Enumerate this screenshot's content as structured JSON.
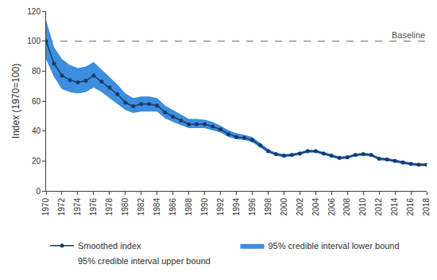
{
  "chart_data": {
    "type": "line",
    "y_label": "Index (1970=100)",
    "x": [
      1970,
      1971,
      1972,
      1973,
      1974,
      1975,
      1976,
      1977,
      1978,
      1979,
      1980,
      1981,
      1982,
      1983,
      1984,
      1985,
      1986,
      1987,
      1988,
      1989,
      1990,
      1991,
      1992,
      1993,
      1994,
      1995,
      1996,
      1997,
      1998,
      1999,
      2000,
      2001,
      2002,
      2003,
      2004,
      2005,
      2006,
      2007,
      2008,
      2009,
      2010,
      2011,
      2012,
      2013,
      2014,
      2015,
      2016,
      2017,
      2018
    ],
    "series": [
      {
        "name": "Smoothed index",
        "type": "line",
        "color": "#1b3a6b",
        "marker": "circle",
        "line_style": "solid",
        "values": [
          100,
          85,
          77,
          74,
          72.5,
          73.5,
          77,
          73,
          69,
          64.5,
          59,
          56.5,
          58,
          58,
          57,
          52.5,
          49.5,
          47,
          44.5,
          44.5,
          44.5,
          43,
          41,
          38,
          36,
          35.5,
          34,
          30.5,
          26.5,
          24.5,
          23.5,
          24,
          25,
          26.5,
          26.5,
          25,
          23.5,
          22,
          22.5,
          24,
          24.5,
          24,
          21.5,
          21,
          20,
          19,
          18,
          17.5,
          17.5
        ]
      },
      {
        "name": "95% credible interval lower bound",
        "type": "area",
        "color": "#3d8ede",
        "values": [
          88,
          76,
          68,
          66,
          65,
          66,
          69,
          66,
          62,
          58,
          54,
          52,
          53,
          53,
          53,
          48.5,
          46,
          44,
          42,
          42,
          42,
          40.5,
          39,
          36,
          34.5,
          34,
          32.5,
          29,
          25.5,
          23.5,
          22.5,
          23,
          24,
          25.5,
          25.5,
          24,
          22.5,
          21,
          21.5,
          23,
          23.5,
          23,
          20.5,
          20,
          19,
          18,
          17,
          16.5,
          16.5
        ]
      },
      {
        "name": "95% credible interval upper bound",
        "type": "area",
        "color": "#3d8ede",
        "values": [
          114,
          96,
          88,
          84,
          82,
          83,
          86,
          81,
          76,
          71,
          65,
          62,
          63,
          63,
          62,
          57,
          54,
          51,
          48,
          48,
          47.5,
          46,
          43.5,
          40.5,
          38.5,
          37.5,
          36,
          32,
          28,
          25.5,
          24.5,
          25,
          26,
          27.5,
          27.5,
          26,
          24.5,
          23,
          23.5,
          25,
          25.5,
          25,
          22.5,
          22,
          21,
          20,
          19,
          18.5,
          18.5
        ]
      }
    ],
    "annotations": [
      {
        "text": "Baseline",
        "y": 100
      }
    ],
    "xlim": [
      1970,
      2018
    ],
    "xticks": [
      1970,
      1972,
      1974,
      1976,
      1978,
      1980,
      1982,
      1984,
      1986,
      1988,
      1990,
      1992,
      1994,
      1996,
      1998,
      2000,
      2002,
      2004,
      2006,
      2008,
      2010,
      2012,
      2014,
      2016,
      2018
    ],
    "ylim": [
      0,
      120
    ],
    "yticks": [
      0,
      20,
      40,
      60,
      80,
      100,
      120
    ],
    "grid": false,
    "legend": "bottom"
  }
}
